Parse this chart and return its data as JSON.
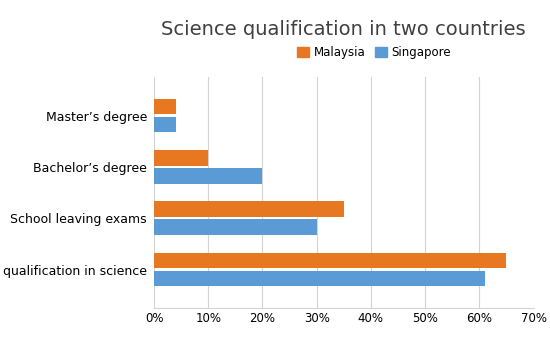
{
  "title": "Science qualification in two countries",
  "categories": [
    "No qualification in science",
    "School leaving exams",
    "Bachelor’s degree",
    "Master’s degree"
  ],
  "malaysia": [
    0.65,
    0.35,
    0.1,
    0.04
  ],
  "singapore": [
    0.61,
    0.3,
    0.2,
    0.04
  ],
  "malaysia_color": "#E87722",
  "singapore_color": "#5B9BD5",
  "background_color": "#FFFFFF",
  "grid_color": "#D3D3D3",
  "xlim": [
    0,
    0.7
  ],
  "xticks": [
    0.0,
    0.1,
    0.2,
    0.3,
    0.4,
    0.5,
    0.6,
    0.7
  ],
  "xtick_labels": [
    "0%",
    "10%",
    "20%",
    "30%",
    "40%",
    "50%",
    "60%",
    "70%"
  ],
  "bar_height": 0.3,
  "bar_gap": 0.05,
  "legend_labels": [
    "Malaysia",
    "Singapore"
  ],
  "title_fontsize": 14,
  "label_fontsize": 9,
  "tick_fontsize": 8.5
}
